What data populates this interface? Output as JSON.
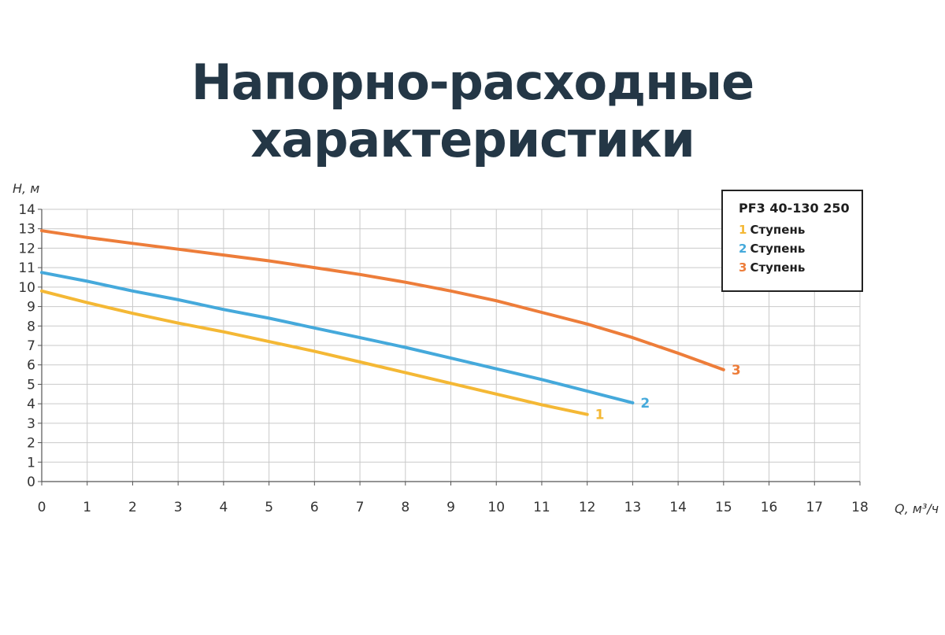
{
  "title": "Напорно-расходные характеристики",
  "chart_data": {
    "type": "line",
    "ylabel": "H, м",
    "xlabel": "Q, м³/ч",
    "xlim": [
      0,
      18
    ],
    "ylim": [
      0,
      14
    ],
    "x_ticks": [
      "0",
      "1",
      "2",
      "3",
      "4",
      "5",
      "6",
      "7",
      "8",
      "9",
      "10",
      "11",
      "12",
      "13",
      "14",
      "15",
      "16",
      "17",
      "18"
    ],
    "y_ticks": [
      "0",
      "1",
      "2",
      "3",
      "4",
      "5",
      "6",
      "7",
      "8",
      "9",
      "10",
      "11",
      "12",
      "13",
      "14"
    ],
    "grid": true,
    "legend": {
      "title": "PF3 40-130 250",
      "placement": "top-right"
    },
    "series": [
      {
        "name": "Ступень",
        "number": "1",
        "color": "#F4B835",
        "x": [
          0,
          1,
          2,
          3,
          4,
          5,
          6,
          7,
          8,
          9,
          10,
          11,
          12
        ],
        "y": [
          9.8,
          9.2,
          8.65,
          8.15,
          7.7,
          7.2,
          6.7,
          6.15,
          5.6,
          5.05,
          4.5,
          3.95,
          3.45
        ]
      },
      {
        "name": "Ступень",
        "number": "2",
        "color": "#45A9DB",
        "x": [
          0,
          1,
          2,
          3,
          4,
          5,
          6,
          7,
          8,
          9,
          10,
          11,
          12,
          13
        ],
        "y": [
          10.75,
          10.3,
          9.8,
          9.35,
          8.85,
          8.4,
          7.9,
          7.4,
          6.9,
          6.35,
          5.8,
          5.25,
          4.65,
          4.05
        ]
      },
      {
        "name": "Ступень",
        "number": "3",
        "color": "#ED7D3A",
        "x": [
          0,
          1,
          2,
          3,
          4,
          5,
          6,
          7,
          8,
          9,
          10,
          11,
          12,
          13,
          14,
          15
        ],
        "y": [
          12.9,
          12.55,
          12.25,
          11.95,
          11.65,
          11.35,
          11.0,
          10.65,
          10.25,
          9.8,
          9.3,
          8.7,
          8.1,
          7.4,
          6.6,
          5.75
        ]
      }
    ]
  }
}
